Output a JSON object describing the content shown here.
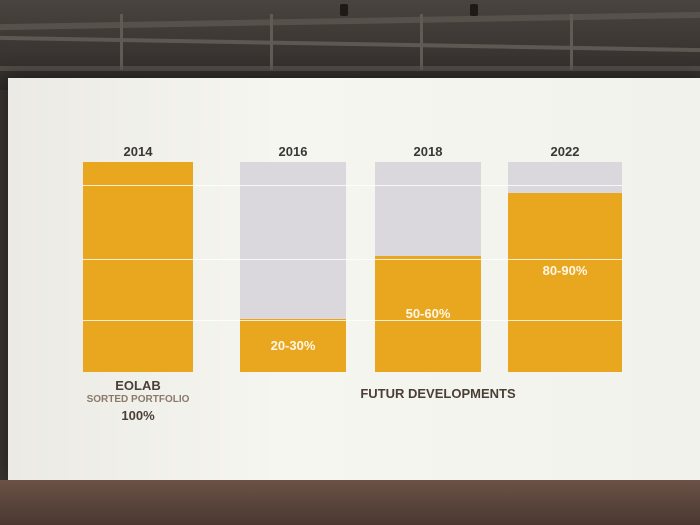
{
  "scene": "photo of a projected slide showing a bar chart in an auditorium",
  "colors": {
    "bar_fill": "#e9a720",
    "bar_track": "#dad8dd",
    "screen": "#f4f4ef"
  },
  "labels": {
    "eolab": "EOLAB",
    "sorted_portfolio": "SORTED PORTFOLIO",
    "eolab_pct": "100%",
    "future": "FUTUR DEVELOPMENTS"
  },
  "chart_data": {
    "type": "bar",
    "categories": [
      "2014",
      "2016",
      "2018",
      "2022"
    ],
    "values": [
      100,
      25,
      55,
      85
    ],
    "value_labels": [
      "",
      "20-30%",
      "50-60%",
      "80-90%"
    ],
    "ylim": [
      0,
      100
    ],
    "grid": false,
    "legend": "none"
  }
}
